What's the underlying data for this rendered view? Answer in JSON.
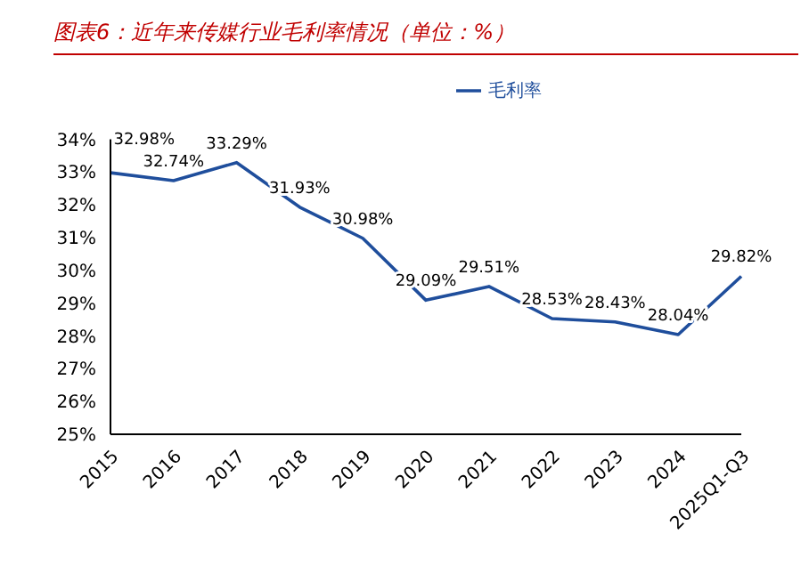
{
  "chart_data": {
    "type": "line",
    "title": "图表6：近年来传媒行业毛利率情况（单位：%）",
    "categories": [
      "2015",
      "2016",
      "2017",
      "2018",
      "2019",
      "2020",
      "2021",
      "2022",
      "2023",
      "2024",
      "2025Q1-Q3"
    ],
    "series": [
      {
        "name": "毛利率",
        "color": "#1f4e9c",
        "values": [
          32.98,
          32.74,
          33.29,
          31.93,
          30.98,
          29.09,
          29.51,
          28.53,
          28.43,
          28.04,
          29.82
        ],
        "value_labels": [
          "32.98%",
          "32.74%",
          "33.29%",
          "31.93%",
          "30.98%",
          "29.09%",
          "29.51%",
          "28.53%",
          "28.43%",
          "28.04%",
          "29.82%"
        ]
      }
    ],
    "ylim": [
      25,
      34
    ],
    "yticks": [
      {
        "value": 25,
        "label": "25%"
      },
      {
        "value": 26,
        "label": "26%"
      },
      {
        "value": 27,
        "label": "27%"
      },
      {
        "value": 28,
        "label": "28%"
      },
      {
        "value": 29,
        "label": "29%"
      },
      {
        "value": 30,
        "label": "30%"
      },
      {
        "value": 31,
        "label": "31%"
      },
      {
        "value": 32,
        "label": "32%"
      },
      {
        "value": 33,
        "label": "33%"
      },
      {
        "value": 34,
        "label": "34%"
      }
    ],
    "grid": false,
    "legend": "top",
    "marker": "none",
    "line_style": "solid"
  }
}
